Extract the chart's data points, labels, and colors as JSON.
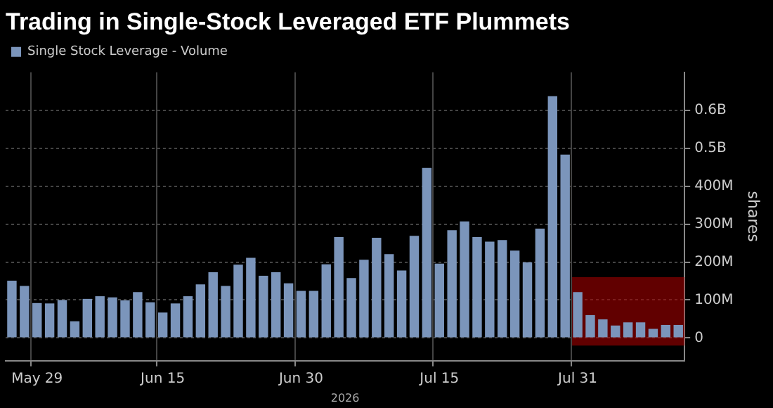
{
  "chart_data": {
    "type": "bar",
    "title": "Trading in Single-Stock Leveraged ETF Plummets",
    "xlabel": "2026",
    "ylabel": "shares",
    "categories": [
      null,
      null,
      "May 29",
      null,
      null,
      null,
      null,
      null,
      null,
      null,
      null,
      null,
      "Jun 15",
      null,
      null,
      null,
      null,
      null,
      null,
      null,
      null,
      null,
      null,
      "Jun 30",
      null,
      null,
      null,
      null,
      null,
      null,
      null,
      null,
      null,
      null,
      "Jul 15",
      null,
      null,
      null,
      null,
      null,
      null,
      null,
      null,
      null,
      null,
      "Jul 31",
      null,
      null,
      null,
      null,
      null,
      null,
      null,
      null
    ],
    "series": [
      {
        "name": "Single Stock Leverage - Volume",
        "color": "#7b95bb",
        "values": [
          151000000,
          137000000,
          92000000,
          91000000,
          100000000,
          44000000,
          103000000,
          110000000,
          107000000,
          99000000,
          121000000,
          94000000,
          67000000,
          91000000,
          110000000,
          141000000,
          173000000,
          137000000,
          193000000,
          211000000,
          164000000,
          173000000,
          144000000,
          124000000,
          124000000,
          194000000,
          266000000,
          158000000,
          206000000,
          264000000,
          221000000,
          178000000,
          269000000,
          448000000,
          196000000,
          284000000,
          307000000,
          266000000,
          254000000,
          258000000,
          230000000,
          199000000,
          288000000,
          637000000,
          483000000,
          121000000,
          60000000,
          49000000,
          33000000,
          41000000,
          41000000,
          24000000,
          34000000,
          34000000
        ]
      }
    ],
    "ylim": [
      -60000000,
      700000000
    ],
    "yticks": [
      0,
      {
        "value": 100000000,
        "label": "100M"
      },
      {
        "value": 200000000,
        "label": "200M"
      },
      {
        "value": 300000000,
        "label": "300M"
      },
      {
        "value": 400000000,
        "label": "400M"
      },
      {
        "value": 500000000,
        "label": "0.5B"
      },
      {
        "value": 600000000,
        "label": "0.6B"
      }
    ],
    "grid": true,
    "legend": "top left",
    "bands": [
      {
        "axis": "y",
        "from": -20000000,
        "to": 160000000,
        "color": "#b00000"
      }
    ]
  }
}
